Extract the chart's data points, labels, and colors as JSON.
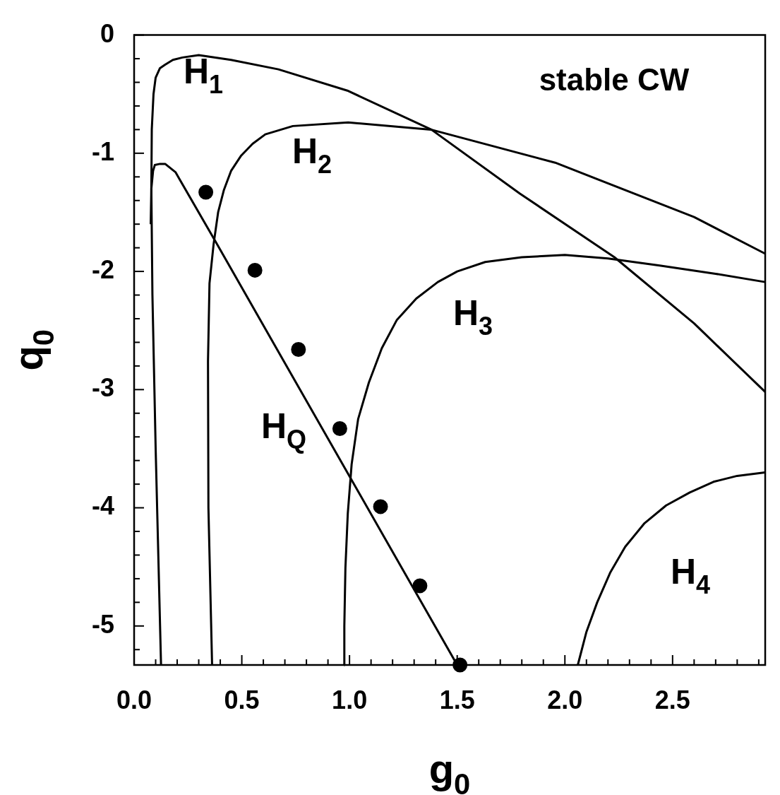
{
  "chart_data": {
    "type": "line",
    "xlabel": "g$_{0}$",
    "ylabel": "q$_{0}$",
    "xlim": [
      0,
      2.93
    ],
    "ylim": [
      -5.33,
      0
    ],
    "xticks": [
      {
        "value": 0,
        "label": "0.0"
      },
      {
        "value": 0.1,
        "label": null
      },
      {
        "value": 0.2,
        "label": null
      },
      {
        "value": 0.3,
        "label": null
      },
      {
        "value": 0.4,
        "label": null
      },
      {
        "value": 0.5,
        "label": "0.5"
      },
      {
        "value": 0.6,
        "label": null
      },
      {
        "value": 0.7,
        "label": null
      },
      {
        "value": 0.8,
        "label": null
      },
      {
        "value": 0.9,
        "label": null
      },
      {
        "value": 1,
        "label": "1.0"
      },
      {
        "value": 1.1,
        "label": null
      },
      {
        "value": 1.2,
        "label": null
      },
      {
        "value": 1.3,
        "label": null
      },
      {
        "value": 1.4,
        "label": null
      },
      {
        "value": 1.5,
        "label": "1.5"
      },
      {
        "value": 1.6,
        "label": null
      },
      {
        "value": 1.7,
        "label": null
      },
      {
        "value": 1.8,
        "label": null
      },
      {
        "value": 1.9,
        "label": null
      },
      {
        "value": 2,
        "label": "2.0"
      },
      {
        "value": 2.1,
        "label": null
      },
      {
        "value": 2.2,
        "label": null
      },
      {
        "value": 2.3,
        "label": null
      },
      {
        "value": 2.4,
        "label": null
      },
      {
        "value": 2.5,
        "label": "2.5"
      },
      {
        "value": 2.6,
        "label": null
      },
      {
        "value": 2.7,
        "label": null
      },
      {
        "value": 2.8,
        "label": null
      },
      {
        "value": 2.9,
        "label": null
      }
    ],
    "yticks": [
      0,
      {
        "value": -0.2,
        "label": null
      },
      {
        "value": -0.4,
        "label": null
      },
      {
        "value": -0.6,
        "label": null
      },
      {
        "value": -0.8,
        "label": null
      },
      -1,
      {
        "value": -1.2,
        "label": null
      },
      {
        "value": -1.4,
        "label": null
      },
      {
        "value": -1.6,
        "label": null
      },
      {
        "value": -1.8,
        "label": null
      },
      -2,
      {
        "value": -2.2,
        "label": null
      },
      {
        "value": -2.4,
        "label": null
      },
      {
        "value": -2.6,
        "label": null
      },
      {
        "value": -2.8,
        "label": null
      },
      -3,
      {
        "value": -3.2,
        "label": null
      },
      {
        "value": -3.4,
        "label": null
      },
      {
        "value": -3.6,
        "label": null
      },
      {
        "value": -3.8,
        "label": null
      },
      -4,
      {
        "value": -4.2,
        "label": null
      },
      {
        "value": -4.4,
        "label": null
      },
      {
        "value": -4.6,
        "label": null
      },
      {
        "value": -4.8,
        "label": null
      },
      -5,
      {
        "value": -5.2,
        "label": null
      }
    ],
    "grid": false,
    "legend": false,
    "marker": "none",
    "line_style": "solid",
    "series": [
      {
        "color": "#000000",
        "x": [
          0.125,
          0.1,
          0.085,
          0.08,
          0.082,
          0.09,
          0.1,
          0.12,
          0.144,
          0.18,
          0.224,
          0.3,
          0.45,
          0.67,
          0.99,
          1.38,
          1.79,
          2.23,
          2.6,
          2.93
        ],
        "values": [
          -5.33,
          -3.5,
          -2.2,
          -1.3,
          -0.8,
          -0.5,
          -0.36,
          -0.28,
          -0.25,
          -0.21,
          -0.19,
          -0.17,
          -0.21,
          -0.29,
          -0.47,
          -0.8,
          -1.34,
          -1.88,
          -2.44,
          -3.02
        ]
      },
      {
        "color": "#000000",
        "x": [
          0.362,
          0.345,
          0.343,
          0.35,
          0.369,
          0.39,
          0.417,
          0.45,
          0.497,
          0.55,
          0.609,
          0.737,
          0.994,
          1.378,
          1.955,
          2.6,
          2.93
        ],
        "values": [
          -5.33,
          -4,
          -2.76,
          -2.1,
          -1.77,
          -1.5,
          -1.31,
          -1.15,
          -1.02,
          -0.92,
          -0.84,
          -0.77,
          -0.74,
          -0.8,
          -1.08,
          -1.54,
          -1.85
        ]
      },
      {
        "color": "#000000",
        "x": [
          0.077,
          0.08,
          0.088,
          0.096,
          0.12,
          0.144,
          0.192,
          0.385,
          1.5
        ],
        "values": [
          -1.6,
          -1.3,
          -1.15,
          -1.1,
          -1.09,
          -1.09,
          -1.16,
          -1.77,
          -5.33
        ]
      },
      {
        "color": "#000000",
        "x": [
          0.974,
          0.976,
          0.981,
          0.992,
          1.01,
          1.04,
          1.09,
          1.15,
          1.22,
          1.31,
          1.41,
          1.5,
          1.63,
          1.8,
          2,
          2.2,
          2.44,
          2.7,
          2.93
        ],
        "values": [
          -5.33,
          -5,
          -4.51,
          -4.05,
          -3.63,
          -3.25,
          -2.94,
          -2.65,
          -2.41,
          -2.23,
          -2.09,
          -2,
          -1.92,
          -1.88,
          -1.86,
          -1.89,
          -1.95,
          -2.02,
          -2.09
        ]
      },
      {
        "color": "#000000",
        "x": [
          2.06,
          2.1,
          2.15,
          2.21,
          2.28,
          2.37,
          2.47,
          2.58,
          2.69,
          2.8,
          2.93
        ],
        "values": [
          -5.33,
          -5.05,
          -4.8,
          -4.55,
          -4.33,
          -4.13,
          -3.98,
          -3.87,
          -3.78,
          -3.73,
          -3.7
        ]
      },
      {
        "type": "scatter",
        "marker": "circle",
        "color": "#000000",
        "x": [
          0.333,
          0.561,
          0.763,
          0.955,
          1.144,
          1.327,
          1.513
        ],
        "values": [
          -1.33,
          -1.99,
          -2.66,
          -3.33,
          -3.99,
          -4.66,
          -5.33
        ]
      }
    ],
    "annotations": [
      "H$_{1}$",
      "H$_{2}$",
      "H$_{3}$",
      "H$_{Q}$",
      "H$_{4}$",
      "stable CW"
    ]
  }
}
